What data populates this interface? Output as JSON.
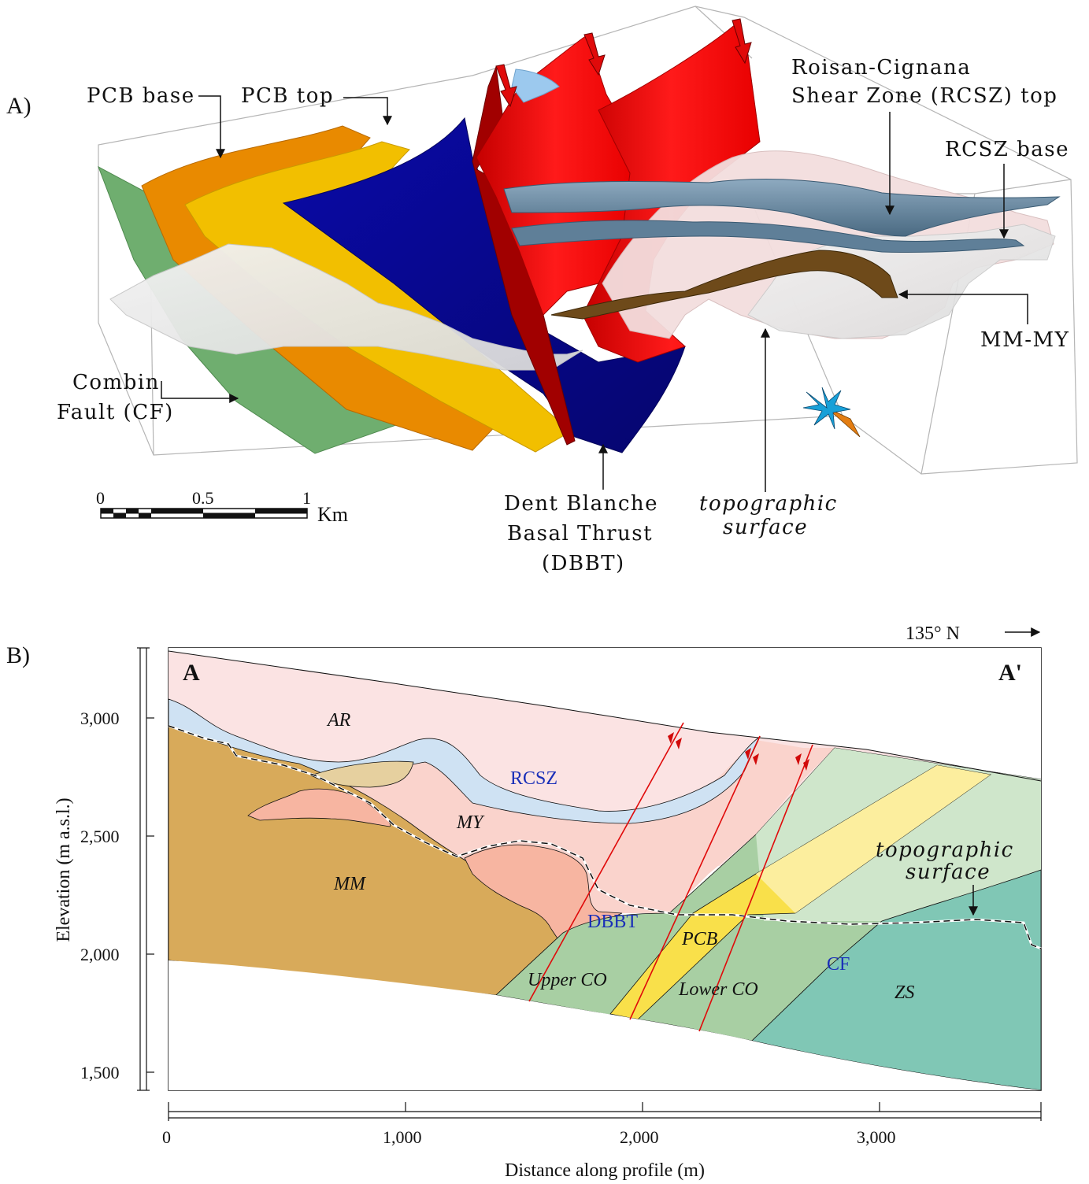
{
  "panel_a": {
    "letter": "A)",
    "labels": {
      "pcb_base": "PCB base",
      "pcb_top": "PCB top",
      "rcsz_top_1": "Roisan-Cignana",
      "rcsz_top_2": "Shear Zone (RCSZ) top",
      "rcsz_base": "RCSZ base",
      "mm_my": "MM-MY",
      "combin_1": "Combin",
      "combin_2": "Fault (CF)",
      "dbbt_1": "Dent Blanche",
      "dbbt_2": "Basal Thrust",
      "dbbt_3": "(DBBT)",
      "topo_1": "topographic",
      "topo_2": "surface"
    },
    "scale": {
      "t0": "0",
      "t1": "0.5",
      "t2": "1",
      "unit": "Km"
    }
  },
  "panel_b": {
    "letter": "B)",
    "direction": "135° N",
    "section_start": "A",
    "section_end": "A'",
    "units": {
      "ar": "AR",
      "rcsz": "RCSZ",
      "my": "MY",
      "mm": "MM",
      "dbbt": "DBBT",
      "pcb": "PCB",
      "upper_co": "Upper CO",
      "lower_co": "Lower CO",
      "cf": "CF",
      "zs": "ZS"
    },
    "topo_1": "topographic",
    "topo_2": "surface",
    "y_axis": {
      "label": "Elevation (m a.s.l.)",
      "ticks": [
        "3,000",
        "2,500",
        "2,000",
        "1,500"
      ]
    },
    "x_axis": {
      "label": "Distance along profile (m)",
      "ticks": [
        "0",
        "1,000",
        "2,000",
        "3,000"
      ]
    }
  },
  "colors": {
    "combin_fault": "#6fae6f",
    "pcb_base": "#e98a00",
    "pcb_top": "#f2bf00",
    "dbbt": "#0a0a96",
    "faults": "#e00a0a",
    "rcsz": "#6e8fa8",
    "mm_my": "#6e4a1a",
    "ar": "#fbe3e3",
    "rcsz_section": "#cfe2f3",
    "my": "#fad3cc",
    "mm": "#d8aa5a",
    "upper_co": "#a8cfa3",
    "lower_co": "#a8cfa3",
    "pcb_section": "#f9e04a",
    "zs": "#80c7b5"
  }
}
